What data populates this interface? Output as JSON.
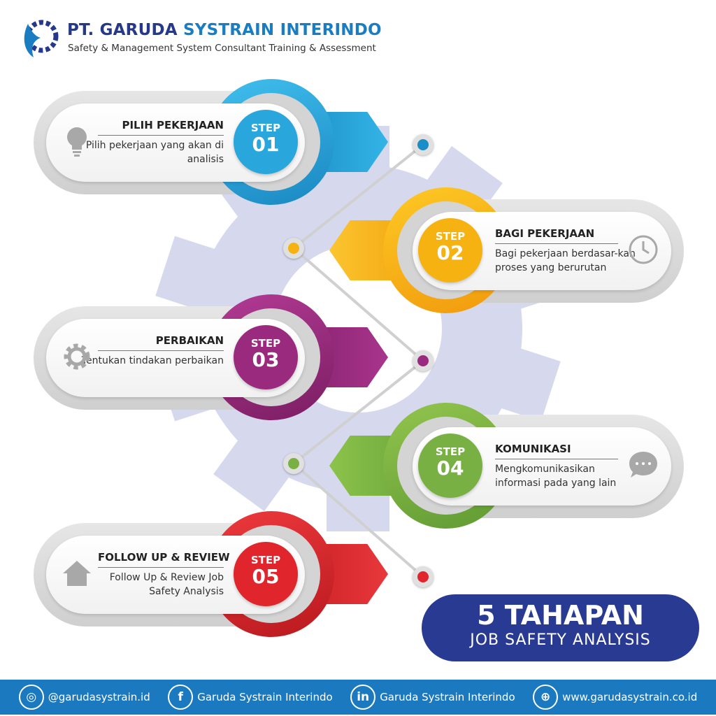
{
  "header": {
    "brand_part1": "PT. GARUDA",
    "brand_part2": "SYSTRAIN INTERINDO",
    "tagline": "Safety & Management System Consultant Training & Assessment"
  },
  "colors": {
    "blue": "#29a6dc",
    "yellow": "#f6b210",
    "purple": "#9a2a7e",
    "green": "#79b043",
    "red": "#e0262c",
    "navy": "#293a92",
    "footer": "#1b79c0"
  },
  "steps": [
    {
      "step": "STEP",
      "number": "01",
      "title": "PILIH PEKERJAAN",
      "description": "Pilih pekerjaan yang akan di analisis",
      "icon": "lightbulb-icon"
    },
    {
      "step": "STEP",
      "number": "02",
      "title": "BAGI PEKERJAAN",
      "description": "Bagi pekerjaan berdasar-kan proses yang berurutan",
      "icon": "clock-icon"
    },
    {
      "step": "STEP",
      "number": "03",
      "title": "PERBAIKAN",
      "description": "Tentukan tindakan perbaikan",
      "icon": "gear-icon"
    },
    {
      "step": "STEP",
      "number": "04",
      "title": "KOMUNIKASI",
      "description": "Mengkomunikasikan informasi pada yang lain",
      "icon": "chat-bubble-icon"
    },
    {
      "step": "STEP",
      "number": "05",
      "title": "FOLLOW UP & REVIEW",
      "description": "Follow Up & Review Job Safety Analysis",
      "icon": "house-icon"
    }
  ],
  "badge": {
    "line1": "5 TAHAPAN",
    "line2": "JOB SAFETY ANALYSIS"
  },
  "footer": {
    "instagram": "@garudasystrain.id",
    "facebook": "Garuda Systrain Interindo",
    "linkedin": "Garuda Systrain Interindo",
    "website": "www.garudasystrain.co.id"
  }
}
